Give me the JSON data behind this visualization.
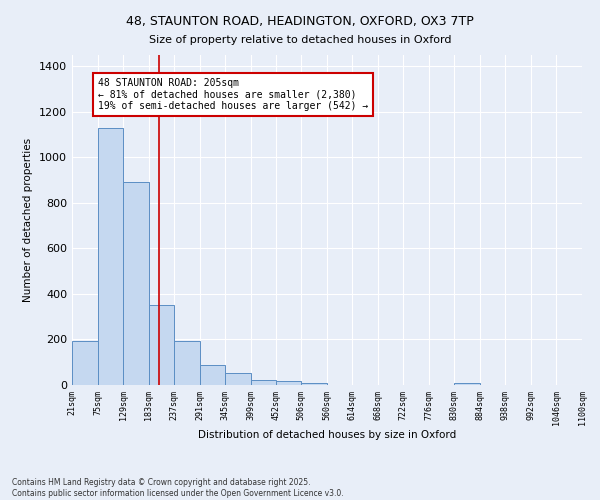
{
  "title_line1": "48, STAUNTON ROAD, HEADINGTON, OXFORD, OX3 7TP",
  "title_line2": "Size of property relative to detached houses in Oxford",
  "xlabel": "Distribution of detached houses by size in Oxford",
  "ylabel": "Number of detached properties",
  "bar_edges": [
    21,
    75,
    129,
    183,
    237,
    291,
    345,
    399,
    452,
    506,
    560,
    614,
    668,
    722,
    776,
    830,
    884,
    938,
    992,
    1046,
    1100
  ],
  "bar_heights": [
    192,
    1130,
    893,
    353,
    193,
    88,
    52,
    20,
    18,
    10,
    0,
    0,
    0,
    0,
    0,
    9,
    0,
    0,
    0,
    0
  ],
  "bar_color": "#c5d8f0",
  "bar_edge_color": "#5b8ec4",
  "property_value": 205,
  "property_line_color": "#cc0000",
  "annotation_text": "48 STAUNTON ROAD: 205sqm\n← 81% of detached houses are smaller (2,380)\n19% of semi-detached houses are larger (542) →",
  "annotation_box_color": "#ffffff",
  "annotation_box_edge_color": "#cc0000",
  "ylim": [
    0,
    1450
  ],
  "yticks": [
    0,
    200,
    400,
    600,
    800,
    1000,
    1200,
    1400
  ],
  "bg_color": "#e8eef8",
  "grid_color": "#ffffff",
  "footnote1": "Contains HM Land Registry data © Crown copyright and database right 2025.",
  "footnote2": "Contains public sector information licensed under the Open Government Licence v3.0."
}
